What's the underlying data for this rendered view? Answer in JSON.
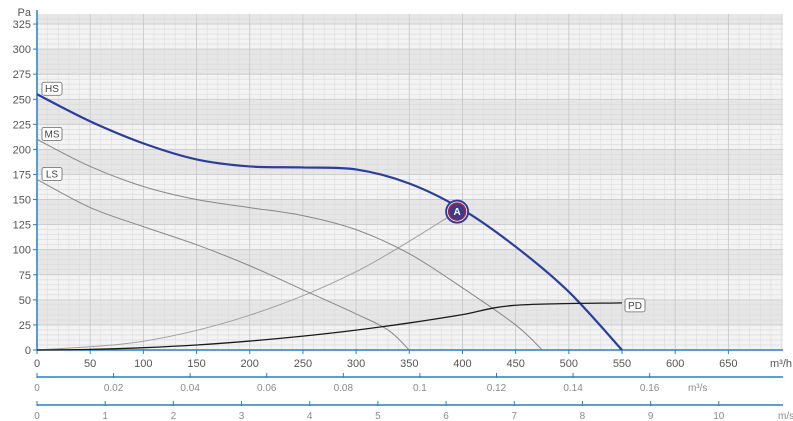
{
  "chart_data": {
    "type": "line",
    "y_unit": "Pa",
    "x_unit": "m³/h",
    "xlim": [
      0,
      700
    ],
    "ylim": [
      0,
      335
    ],
    "y_ticks": [
      0,
      25,
      50,
      75,
      100,
      125,
      150,
      175,
      200,
      225,
      250,
      275,
      300,
      325
    ],
    "x_ticks": [
      0,
      50,
      100,
      150,
      200,
      250,
      300,
      350,
      400,
      450,
      500,
      550,
      600,
      650
    ],
    "secondary_axes": [
      {
        "unit": "m³/s",
        "unit_at": 0.17,
        "ticks": [
          0,
          0.02,
          0.04,
          0.06,
          0.08,
          0.1,
          0.12,
          0.14,
          0.16
        ],
        "tick_labels": [
          "0",
          "0.02",
          "0.04",
          "0.06",
          "0.08",
          "0.1",
          "0.12",
          "0.14",
          "0.16"
        ],
        "factor": 3600
      },
      {
        "unit": "m/s",
        "unit_at": 11,
        "ticks": [
          0,
          1,
          2,
          3,
          4,
          5,
          6,
          7,
          8,
          9,
          10
        ],
        "tick_labels": [
          "0",
          "1",
          "2",
          "3",
          "4",
          "5",
          "6",
          "7",
          "8",
          "9",
          "10"
        ],
        "factor": 64.1
      }
    ],
    "series": [
      {
        "name": "HS",
        "color": "#2b3e9e",
        "style": "thick",
        "points": [
          [
            0,
            255
          ],
          [
            50,
            228
          ],
          [
            100,
            206
          ],
          [
            150,
            190
          ],
          [
            200,
            183
          ],
          [
            250,
            182
          ],
          [
            300,
            180
          ],
          [
            350,
            166
          ],
          [
            400,
            140
          ],
          [
            450,
            103
          ],
          [
            500,
            58
          ],
          [
            550,
            0
          ]
        ]
      },
      {
        "name": "MS",
        "color": "#888888",
        "style": "thin",
        "points": [
          [
            0,
            210
          ],
          [
            50,
            183
          ],
          [
            100,
            163
          ],
          [
            150,
            150
          ],
          [
            200,
            142
          ],
          [
            250,
            134
          ],
          [
            300,
            120
          ],
          [
            350,
            96
          ],
          [
            400,
            62
          ],
          [
            450,
            25
          ],
          [
            475,
            0
          ]
        ]
      },
      {
        "name": "LS",
        "color": "#888888",
        "style": "thin",
        "points": [
          [
            0,
            170
          ],
          [
            50,
            142
          ],
          [
            100,
            123
          ],
          [
            150,
            105
          ],
          [
            200,
            84
          ],
          [
            250,
            60
          ],
          [
            300,
            36
          ],
          [
            330,
            20
          ],
          [
            350,
            0
          ]
        ]
      },
      {
        "name": "PD",
        "color": "#1a1a1a",
        "style": "medium",
        "points": [
          [
            0,
            0
          ],
          [
            50,
            0.6
          ],
          [
            100,
            2.3
          ],
          [
            150,
            5
          ],
          [
            200,
            8.9
          ],
          [
            250,
            13.8
          ],
          [
            300,
            19.8
          ],
          [
            350,
            27
          ],
          [
            400,
            35.3
          ],
          [
            450,
            44.6
          ],
          [
            550,
            47
          ]
        ]
      }
    ],
    "system_curve": {
      "color": "#a0a0a0",
      "points": [
        [
          0,
          0
        ],
        [
          100,
          8.7
        ],
        [
          200,
          34.7
        ],
        [
          300,
          78.1
        ],
        [
          395,
          138
        ]
      ]
    },
    "operating_point": {
      "label": "A",
      "x": 395,
      "y": 138
    }
  }
}
